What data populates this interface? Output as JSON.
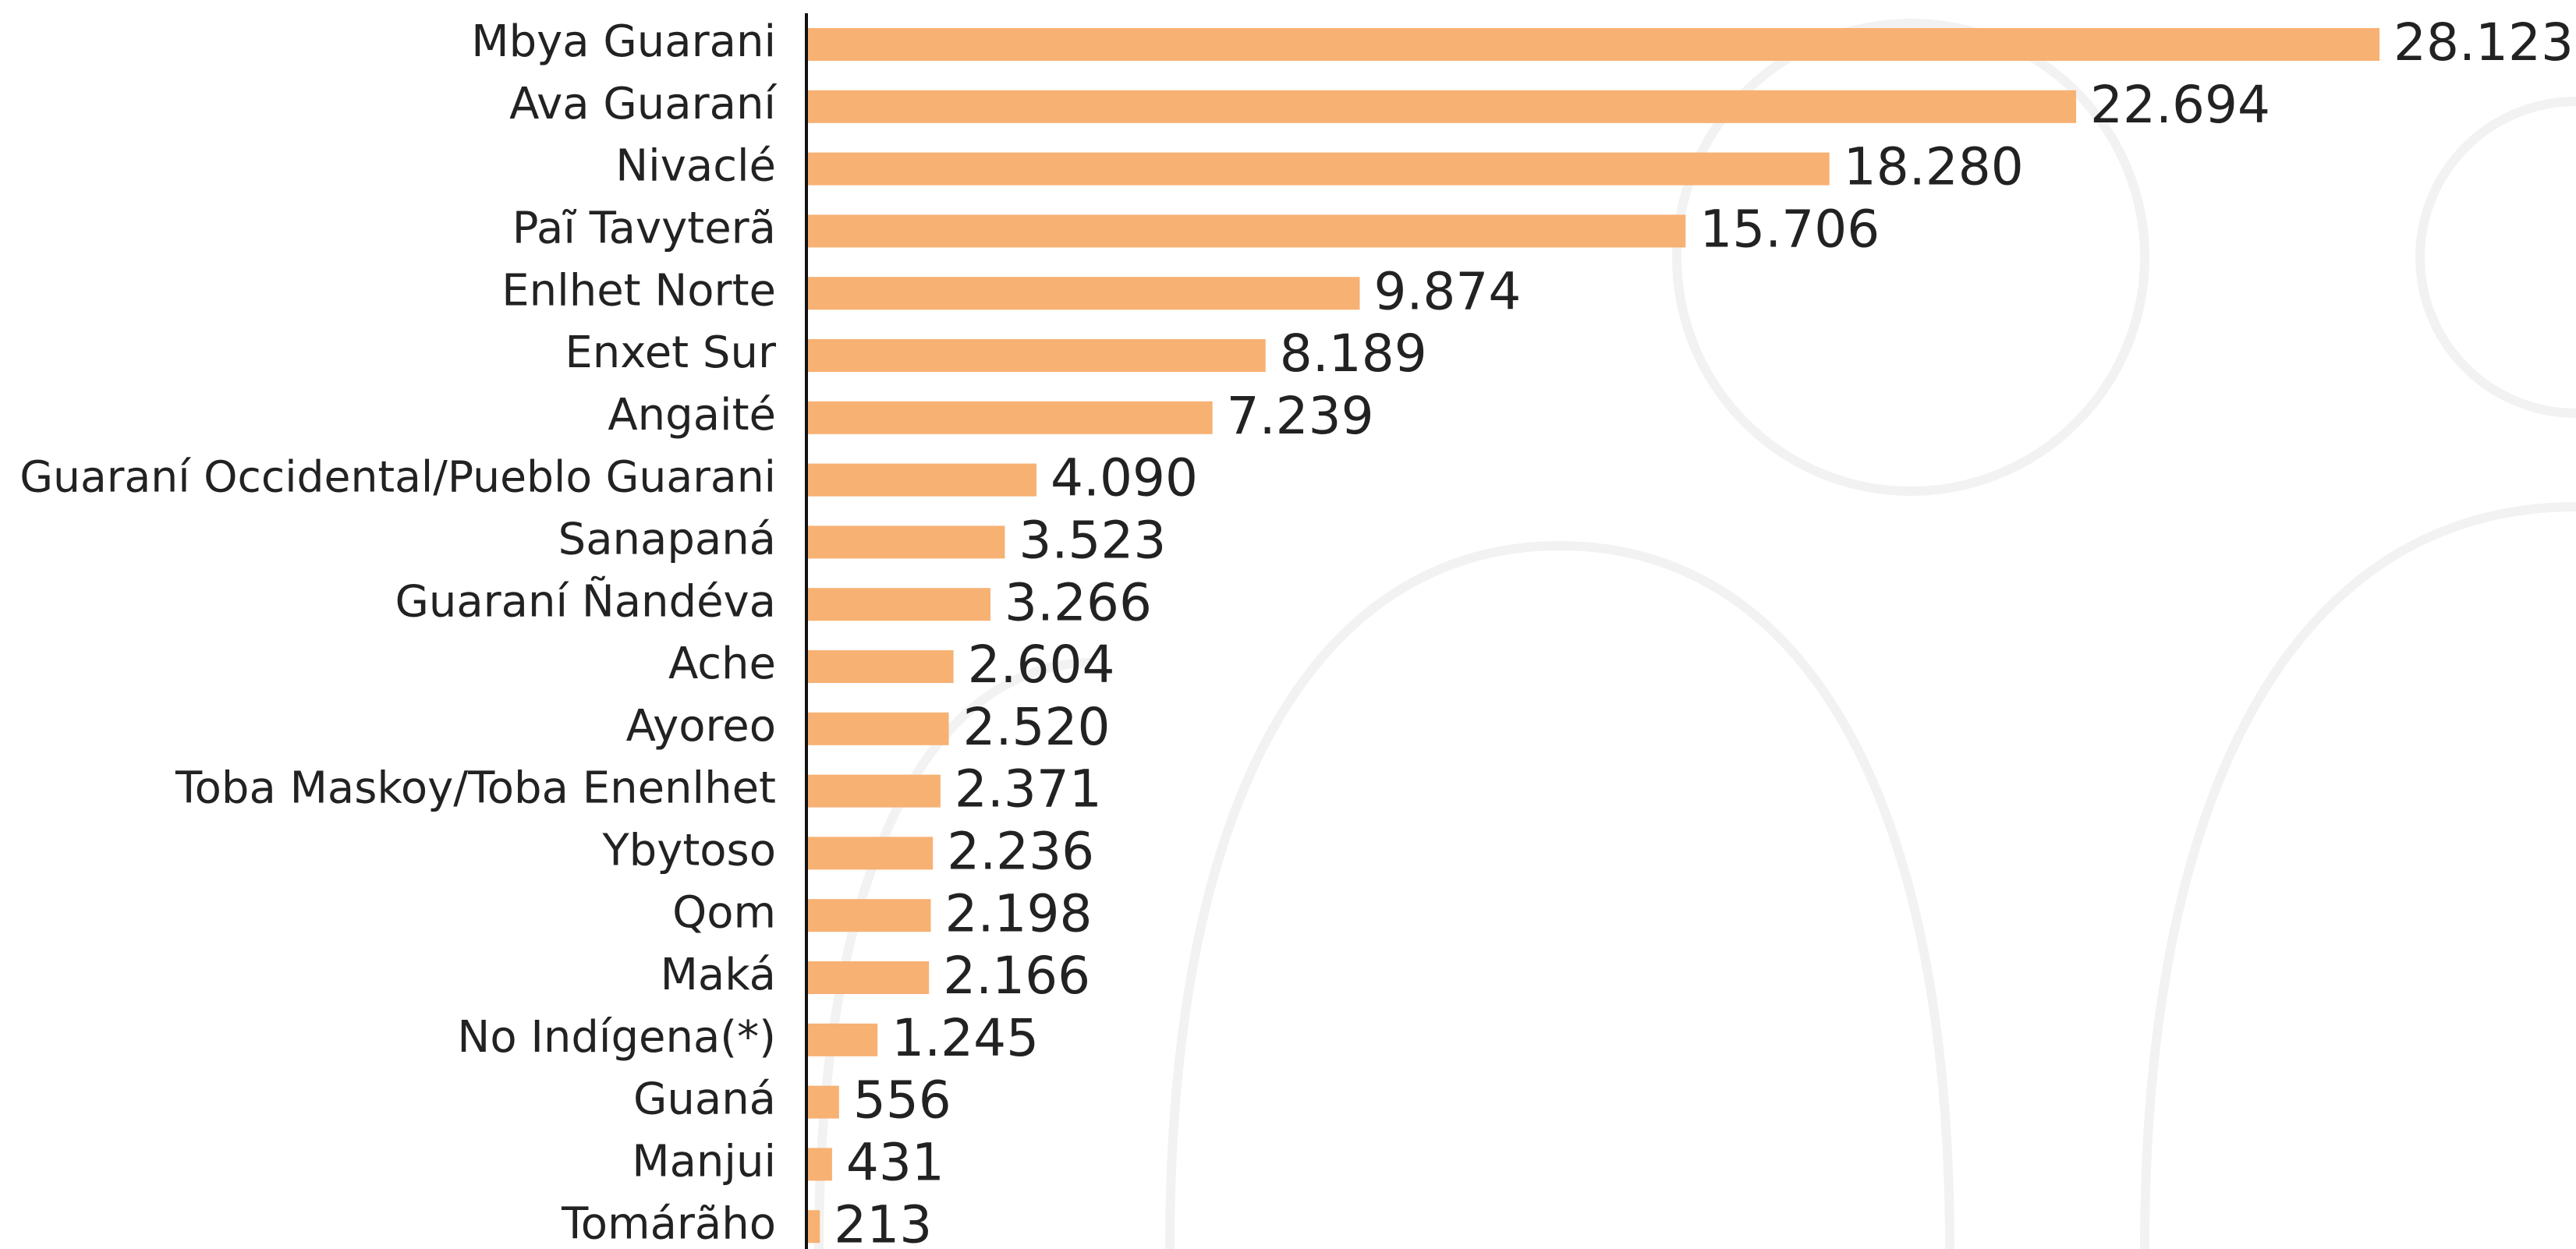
{
  "chart_data": {
    "type": "barh",
    "categories": [
      "Mbya Guarani",
      "Ava Guaraní",
      "Nivaclé",
      "Paĩ Tavyterã",
      "Enlhet Norte",
      "Enxet Sur",
      "Angaité",
      "Guaraní Occidental/Pueblo Guarani",
      "Sanapaná",
      "Guaraní Ñandéva",
      "Ache",
      "Ayoreo",
      "Toba Maskoy/Toba Enenlhet",
      "Ybytoso",
      "Qom",
      "Maká",
      "No Indígena(*)",
      "Guaná",
      "Manjui",
      "Tomárãho"
    ],
    "values": [
      28123,
      22694,
      18280,
      15706,
      9874,
      8189,
      7239,
      4090,
      3523,
      3266,
      2604,
      2520,
      2371,
      2236,
      2198,
      2166,
      1245,
      556,
      431,
      213
    ],
    "value_labels": [
      "28.123",
      "22.694",
      "18.280",
      "15.706",
      "9.874",
      "8.189",
      "7.239",
      "4.090",
      "3.523",
      "3.266",
      "2.604",
      "2.520",
      "2.371",
      "2.236",
      "2.198",
      "2.166",
      "1.245",
      "556",
      "431",
      "213"
    ],
    "color": "#f7b173"
  }
}
